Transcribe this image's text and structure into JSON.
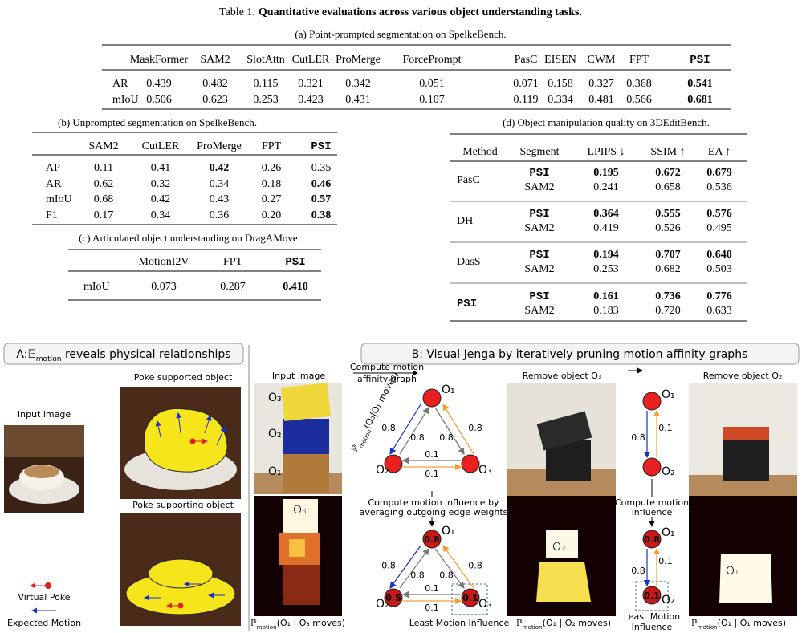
{
  "caption": {
    "label": "Table 1.",
    "text": "Quantitative evaluations across various object understanding tasks."
  },
  "table_a": {
    "caption": "(a) Point-prompted segmentation on SpelkeBench.",
    "header": [
      "MaskFormer",
      "SAM2",
      "SlotAttn",
      "CutLER",
      "ProMerge",
      "ForcePrompt",
      "PasC",
      "EISEN",
      "CWM",
      "FPT",
      "PSI"
    ],
    "rows": [
      [
        "AR",
        "0.439",
        "0.482",
        "0.115",
        "0.321",
        "0.342",
        "0.051",
        "0.071",
        "0.158",
        "0.327",
        "0.368",
        "0.541"
      ],
      [
        "mIoU",
        "0.506",
        "0.623",
        "0.253",
        "0.423",
        "0.431",
        "0.107",
        "0.119",
        "0.334",
        "0.481",
        "0.566",
        "0.681"
      ]
    ]
  },
  "table_b": {
    "caption": "(b) Unprompted segmentation on SpelkeBench.",
    "header": [
      "SAM2",
      "CutLER",
      "ProMerge",
      "FPT",
      "PSI"
    ],
    "rows": [
      [
        "AP",
        "0.11",
        "0.41",
        "0.42",
        "0.26",
        "0.35"
      ],
      [
        "AR",
        "0.62",
        "0.32",
        "0.34",
        "0.18",
        "0.46"
      ],
      [
        "mIoU",
        "0.68",
        "0.42",
        "0.43",
        "0.27",
        "0.57"
      ],
      [
        "F1",
        "0.17",
        "0.34",
        "0.36",
        "0.20",
        "0.38"
      ]
    ]
  },
  "table_c": {
    "caption": "(c) Articulated object understanding on DragAMove.",
    "header": [
      "MotionI2V",
      "FPT",
      "PSI"
    ],
    "rows": [
      [
        "mIoU",
        "0.073",
        "0.287",
        "0.410"
      ]
    ]
  },
  "table_d": {
    "caption": "(d) Object manipulation quality on 3DEditBench.",
    "header": [
      "Method",
      "Segment",
      "LPIPS ↓",
      "SSIM ↑",
      "EA ↑"
    ],
    "groups": [
      {
        "method": "PasC",
        "rows": [
          [
            "PSI",
            "0.195",
            "0.672",
            "0.679"
          ],
          [
            "SAM2",
            "0.241",
            "0.658",
            "0.536"
          ]
        ]
      },
      {
        "method": "DH",
        "rows": [
          [
            "PSI",
            "0.364",
            "0.555",
            "0.576"
          ],
          [
            "SAM2",
            "0.419",
            "0.526",
            "0.495"
          ]
        ]
      },
      {
        "method": "DasS",
        "rows": [
          [
            "PSI",
            "0.194",
            "0.707",
            "0.640"
          ],
          [
            "SAM2",
            "0.253",
            "0.682",
            "0.503"
          ]
        ]
      },
      {
        "method": "PSI",
        "rows": [
          [
            "PSI",
            "0.161",
            "0.736",
            "0.776"
          ],
          [
            "SAM2",
            "0.183",
            "0.720",
            "0.633"
          ]
        ]
      }
    ]
  },
  "figure": {
    "panel_a": {
      "title": {
        "prefix": "A:",
        "symbol": "𝔼",
        "subscript": "motion",
        "text": " reveals physical relationships"
      },
      "input_label": "Input image",
      "supported_label": "Poke supported object",
      "supporting_label": "Poke supporting object",
      "legend": [
        "Virtual Poke",
        "Expected Motion"
      ]
    },
    "panel_b": {
      "title": "B: Visual Jenga by iteratively pruning motion affinity graphs",
      "input_label": "Input image",
      "object_labels": [
        "O₃",
        "O₂",
        "O₁"
      ],
      "heatmap_labels": [
        "O₃",
        "O₂",
        "O₁"
      ],
      "affinity_step": [
        "Compute motion",
        "affinity graph"
      ],
      "edge_note": {
        "symbol": "ℙ",
        "subscript": "motion",
        "text": "(O₃|O₁ moves)"
      },
      "influence_step": [
        "Compute motion influence by",
        "averaging outgoing edge weights"
      ],
      "influence_step_2": [
        "Compute motion",
        "influence"
      ],
      "least": [
        "Least Motion Influence"
      ],
      "least_2": [
        "Least Motion",
        "Influence"
      ],
      "removed": [
        "Remove object O₃",
        "Remove object O₂"
      ],
      "graphs": [
        {
          "nodes": [
            {
              "label": "O₁"
            },
            {
              "label": "O₂"
            },
            {
              "label": "O₃"
            }
          ],
          "edges": [
            "0.8",
            "0.8",
            "0.8",
            "0.8",
            "0.1",
            "0.1"
          ]
        },
        {
          "nodes": [
            {
              "label": "O₁",
              "value": "0.8"
            },
            {
              "label": "O₂",
              "value": "0.5"
            },
            {
              "label": "O₃",
              "value": "0.1"
            }
          ],
          "edges": [
            "0.8",
            "0.8",
            "0.8",
            "0.8",
            "0.1",
            "0.1"
          ]
        },
        {
          "nodes": [
            {
              "label": "O₁"
            },
            {
              "label": "O₂"
            }
          ],
          "edges": [
            "0.8",
            "0.1"
          ]
        },
        {
          "nodes": [
            {
              "label": "O₁",
              "value": "0.8"
            },
            {
              "label": "O₂",
              "value": "0.1"
            }
          ],
          "edges": [
            "0.8",
            "0.1"
          ]
        }
      ],
      "captions": [
        {
          "symbol": "ℙ",
          "subscript": "motion",
          "text": "(O₁ | O₃ moves)"
        },
        {
          "symbol": "ℙ",
          "subscript": "motion",
          "text": "(O₁ | O₂ moves)"
        },
        {
          "symbol": "ℙ",
          "subscript": "motion",
          "text": "(O₁ | O₁ moves)"
        }
      ]
    }
  }
}
